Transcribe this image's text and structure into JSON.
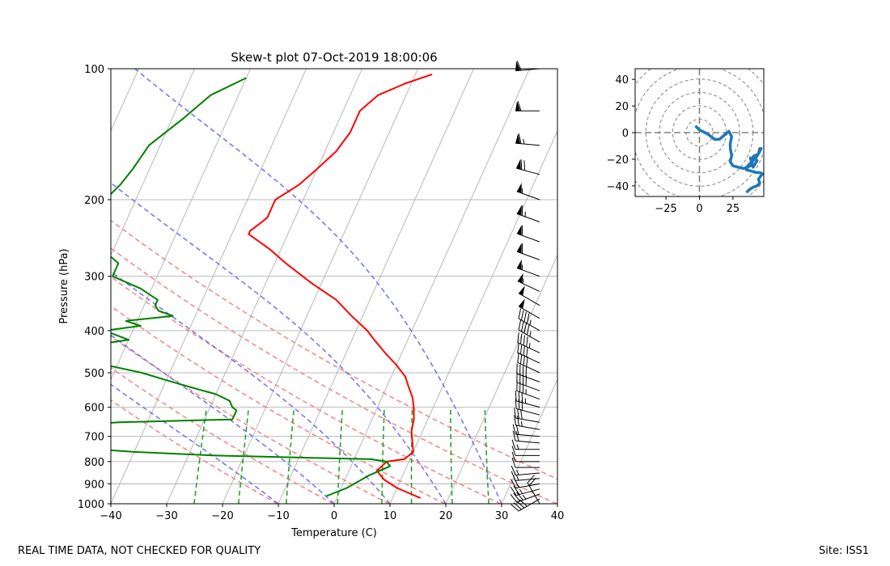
{
  "footer": {
    "left": "REAL TIME DATA, NOT CHECKED FOR QUALITY",
    "right": "Site: ISS1"
  },
  "chart_data": [
    {
      "type": "skew-t",
      "title": "Skew-t plot 07-Oct-2019 18:00:06",
      "xlabel": "Temperature (C)",
      "ylabel": "Pressure (hPa)",
      "xlim": [
        -40,
        40
      ],
      "ylim": [
        1000,
        100
      ],
      "x_ticks": [
        -40,
        -30,
        -20,
        -10,
        0,
        10,
        20,
        30,
        40
      ],
      "x_tick_labels": [
        "−40",
        "−30",
        "−20",
        "−10",
        "0",
        "10",
        "20",
        "30",
        "40"
      ],
      "y_ticks": [
        1000,
        900,
        800,
        700,
        600,
        500,
        400,
        300,
        200,
        100
      ],
      "y_tick_labels": [
        "1000",
        "900",
        "800",
        "700",
        "600",
        "500",
        "400",
        "300",
        "200",
        "100"
      ],
      "grid": true,
      "colors": {
        "temperature": "#ff0000",
        "dewpoint": "#008000",
        "dry_adiabat": "#f08080",
        "moist_adiabat": "#6a6af0",
        "mixing_ratio": "#2ca02c",
        "isotherm": "#b0b0b0"
      },
      "temperature_profile": {
        "name": "Temperature",
        "pressure": [
          970,
          950,
          920,
          880,
          840,
          800,
          790,
          760,
          720,
          680,
          640,
          600,
          570,
          540,
          510,
          480,
          450,
          420,
          400,
          370,
          340,
          310,
          280,
          260,
          240,
          236,
          228,
          220,
          210,
          200,
          185,
          170,
          155,
          140,
          125,
          115,
          108,
          103
        ],
        "values": [
          15,
          13,
          10,
          7,
          5,
          6,
          9,
          10,
          9,
          8,
          7.5,
          6.5,
          5.5,
          4,
          2.5,
          0,
          -3,
          -6,
          -8,
          -12,
          -16,
          -22,
          -28,
          -32,
          -37,
          -37,
          -36,
          -35,
          -35,
          -35,
          -32,
          -30,
          -28,
          -27,
          -27,
          -25,
          -21,
          -17
        ]
      },
      "dewpoint_profile": {
        "name": "Dewpoint",
        "pressure": [
          960,
          920,
          860,
          820,
          800,
          790,
          775,
          760,
          745,
          730,
          715,
          700,
          685,
          670,
          660,
          650,
          640,
          620,
          610,
          600,
          580,
          560,
          540,
          520,
          500,
          480,
          460,
          440,
          420,
          400,
          390,
          380,
          370,
          360,
          350,
          340,
          320,
          300,
          280,
          260,
          240,
          225,
          212,
          205,
          195,
          185,
          170,
          150,
          130,
          115,
          105
        ],
        "values": [
          -2,
          1,
          4,
          7,
          6,
          3,
          -25,
          -40,
          -50,
          -54,
          -50,
          -55,
          -60,
          -65,
          -55,
          -45,
          -25,
          -25,
          -25,
          -26,
          -27,
          -30,
          -35,
          -40,
          -45,
          -52,
          -53,
          -60,
          -50,
          -55,
          -49,
          -52,
          -44,
          -47,
          -48,
          -48,
          -52,
          -58,
          -58,
          -62,
          -63,
          -67,
          -72,
          -67,
          -65,
          -64,
          -63,
          -62,
          -58,
          -55,
          -50
        ]
      },
      "moist_adiabat_start_temps": [
        -10,
        0,
        10,
        20,
        30
      ],
      "dry_adiabat_theta_K": [
        263,
        273,
        283,
        293,
        303,
        313,
        323
      ],
      "mixing_ratio_g_per_kg": [
        0.5,
        1,
        2,
        4,
        7,
        10,
        16,
        24
      ],
      "wind_barbs": {
        "pressure": [
          1000,
          975,
          950,
          925,
          900,
          875,
          850,
          825,
          800,
          775,
          750,
          725,
          700,
          675,
          650,
          625,
          600,
          575,
          550,
          525,
          500,
          475,
          450,
          425,
          400,
          375,
          350,
          325,
          300,
          275,
          250,
          225,
          200,
          175,
          150,
          125,
          100
        ],
        "speed_kt": [
          20,
          40,
          35,
          25,
          20,
          15,
          15,
          10,
          10,
          10,
          15,
          20,
          20,
          25,
          30,
          30,
          35,
          35,
          40,
          40,
          40,
          40,
          45,
          45,
          45,
          50,
          50,
          55,
          55,
          60,
          60,
          65,
          55,
          70,
          65,
          60,
          60
        ],
        "direction_deg": [
          330,
          240,
          250,
          255,
          260,
          265,
          265,
          270,
          270,
          270,
          270,
          275,
          275,
          280,
          280,
          285,
          285,
          290,
          290,
          290,
          295,
          295,
          295,
          300,
          300,
          300,
          300,
          295,
          290,
          290,
          290,
          290,
          290,
          285,
          275,
          270,
          265
        ]
      }
    },
    {
      "type": "hodograph",
      "xlim": [
        -48,
        48
      ],
      "ylim": [
        -48,
        48
      ],
      "x_ticks": [
        -25,
        0,
        25
      ],
      "x_tick_labels": [
        "−25",
        "0",
        "25"
      ],
      "y_ticks": [
        40,
        20,
        0,
        -20,
        -40
      ],
      "y_tick_labels": [
        "40",
        "20",
        "0",
        "−20",
        "−40"
      ],
      "rings": [
        10,
        20,
        30,
        40,
        50,
        60
      ],
      "color": "#1f77b4",
      "u": [
        -3,
        0,
        6,
        10,
        11,
        15,
        22,
        24,
        23,
        23,
        24,
        23,
        25,
        29,
        33,
        38,
        40,
        38,
        40,
        43,
        40,
        44,
        45,
        46,
        44,
        42,
        38,
        36,
        35,
        39,
        42,
        45,
        47,
        44,
        45,
        43,
        40,
        37,
        35
      ],
      "v": [
        5,
        2,
        -1,
        -4,
        -5,
        -5,
        1,
        -3,
        -8,
        -12,
        -17,
        -22,
        -25,
        -26,
        -27,
        -25,
        -21,
        -19,
        -26,
        -21,
        -18,
        -16,
        -12,
        -12,
        -16,
        -19,
        -23,
        -25,
        -28,
        -29,
        -30,
        -30,
        -31,
        -35,
        -38,
        -40,
        -41,
        -43,
        -45
      ]
    }
  ]
}
